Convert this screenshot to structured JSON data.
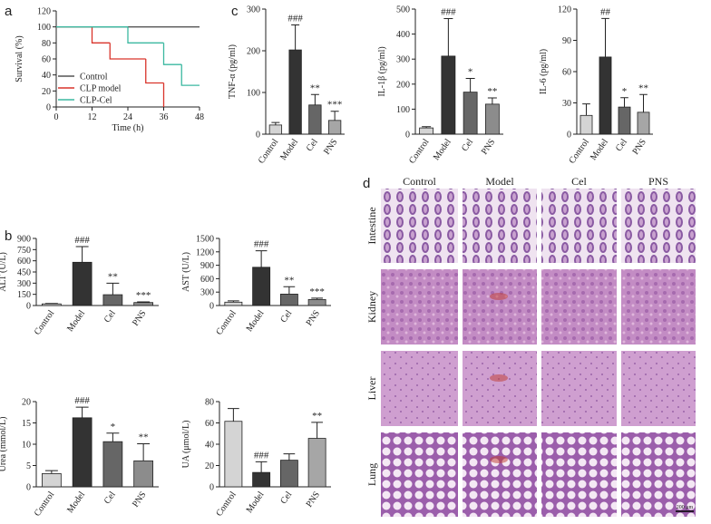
{
  "panel_labels": [
    "a",
    "b",
    "c",
    "d"
  ],
  "chart_data": [
    {
      "type": "line",
      "xlabel": "Time (h)",
      "ylabel": "Survival (%)",
      "xlim": [
        0,
        48
      ],
      "xticks": [
        0,
        12,
        24,
        36,
        48
      ],
      "ylim": [
        0,
        120
      ],
      "yticks": [
        0,
        20,
        40,
        60,
        80,
        100,
        120
      ],
      "step": true,
      "series": [
        {
          "name": "Control",
          "color": "#555555",
          "x": [
            0,
            48
          ],
          "values": [
            100,
            100
          ]
        },
        {
          "name": "CLP model",
          "color": "#d9342b",
          "x": [
            0,
            12,
            18,
            30,
            36
          ],
          "values": [
            100,
            80,
            60,
            30,
            0
          ]
        },
        {
          "name": "CLP-Cel",
          "color": "#3bb8a0",
          "x": [
            0,
            24,
            36,
            42,
            48
          ],
          "values": [
            100,
            80,
            53,
            27,
            27
          ]
        }
      ]
    },
    {
      "type": "bar",
      "ylabel": "TNF-α (pg/ml)",
      "categories": [
        "Control",
        "Model",
        "Cel",
        "PNS"
      ],
      "values": [
        22,
        202,
        70,
        33
      ],
      "errors": [
        6,
        60,
        25,
        22
      ],
      "annotations": [
        null,
        "###",
        "**",
        "***"
      ],
      "colors": [
        "#d4d4d4",
        "#333333",
        "#666666",
        "#a6a6a6"
      ],
      "ylim": [
        0,
        300
      ],
      "yticks": [
        0,
        100,
        200,
        300
      ]
    },
    {
      "type": "bar",
      "ylabel": "IL-1β (pg/ml)",
      "categories": [
        "Control",
        "Model",
        "Cel",
        "PNS"
      ],
      "values": [
        25,
        312,
        168,
        120
      ],
      "errors": [
        5,
        150,
        55,
        25
      ],
      "annotations": [
        null,
        "###",
        "*",
        "**"
      ],
      "colors": [
        "#d4d4d4",
        "#333333",
        "#666666",
        "#8c8c8c"
      ],
      "ylim": [
        0,
        500
      ],
      "yticks": [
        0,
        100,
        200,
        300,
        400,
        500
      ]
    },
    {
      "type": "bar",
      "ylabel": "IL-6 (pg/ml)",
      "categories": [
        "Control",
        "Model",
        "Cel",
        "PNS"
      ],
      "values": [
        18,
        74,
        26,
        21
      ],
      "errors": [
        11,
        37,
        9,
        17
      ],
      "annotations": [
        null,
        "##",
        "*",
        "**"
      ],
      "colors": [
        "#d4d4d4",
        "#333333",
        "#666666",
        "#a6a6a6"
      ],
      "ylim": [
        0,
        120
      ],
      "yticks": [
        0,
        30,
        60,
        90,
        120
      ]
    },
    {
      "type": "bar",
      "ylabel": "ALT (U/L)",
      "categories": [
        "Control",
        "Model",
        "Cel",
        "PNS"
      ],
      "values": [
        22,
        580,
        145,
        40
      ],
      "errors": [
        5,
        210,
        155,
        8
      ],
      "annotations": [
        null,
        "###",
        "**",
        "***"
      ],
      "colors": [
        "#d4d4d4",
        "#333333",
        "#666666",
        "#8c8c8c"
      ],
      "ylim": [
        0,
        900
      ],
      "yticks": [
        0,
        150,
        300,
        450,
        600,
        750,
        900
      ]
    },
    {
      "type": "bar",
      "ylabel": "AST (U/L)",
      "categories": [
        "Control",
        "Model",
        "Cel",
        "PNS"
      ],
      "values": [
        75,
        855,
        255,
        135
      ],
      "errors": [
        30,
        370,
        165,
        30
      ],
      "annotations": [
        null,
        "###",
        "**",
        "***"
      ],
      "colors": [
        "#d4d4d4",
        "#333333",
        "#666666",
        "#8c8c8c"
      ],
      "ylim": [
        0,
        1500
      ],
      "yticks": [
        0,
        300,
        600,
        900,
        1200,
        1500
      ]
    },
    {
      "type": "bar",
      "ylabel": "Urea (mmol/L)",
      "categories": [
        "Control",
        "Model",
        "Cel",
        "PNS"
      ],
      "values": [
        3.1,
        16.2,
        10.6,
        6.1
      ],
      "errors": [
        0.7,
        2.5,
        2,
        4
      ],
      "annotations": [
        null,
        "###",
        "*",
        "**"
      ],
      "colors": [
        "#d4d4d4",
        "#333333",
        "#666666",
        "#8c8c8c"
      ],
      "ylim": [
        0,
        20
      ],
      "yticks": [
        0,
        5,
        10,
        15,
        20
      ]
    },
    {
      "type": "bar",
      "ylabel": "UA (μmol/L)",
      "categories": [
        "Control",
        "Model",
        "Cel",
        "PNS"
      ],
      "values": [
        61.5,
        13.5,
        25,
        45.5
      ],
      "errors": [
        12,
        10,
        6,
        15
      ],
      "annotations": [
        null,
        "###",
        null,
        "**"
      ],
      "colors": [
        "#d4d4d4",
        "#333333",
        "#666666",
        "#a6a6a6"
      ],
      "ylim": [
        0,
        80
      ],
      "yticks": [
        0,
        20,
        40,
        60,
        80
      ]
    }
  ],
  "histology": {
    "columns": [
      "Control",
      "Model",
      "Cel",
      "PNS"
    ],
    "rows": [
      "Intestine",
      "Kidney",
      "Liver",
      "Lung"
    ],
    "scale_bar": "200 μm"
  }
}
